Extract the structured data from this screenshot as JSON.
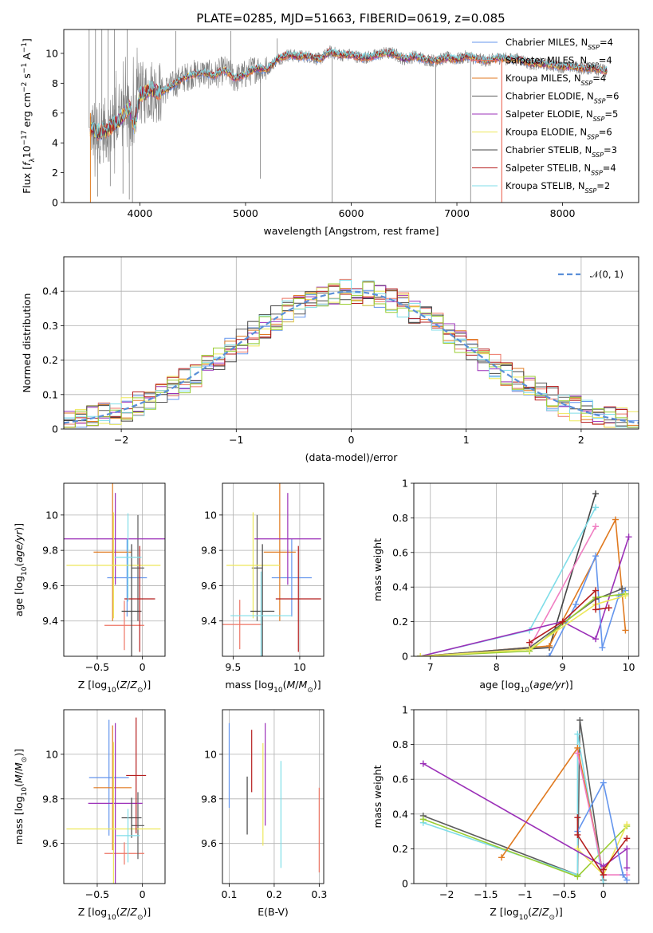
{
  "figure": {
    "title": "PLATE=0285, MJD=51663, FIBERID=0619, z=0.085"
  },
  "models": [
    {
      "name": "Chabrier MILES",
      "nssp": "4",
      "color": "#6495ED"
    },
    {
      "name": "Salpeter MILES",
      "nssp": "4",
      "color": "#ED7564"
    },
    {
      "name": "Kroupa MILES",
      "nssp": "4",
      "color": "#E07A20"
    },
    {
      "name": "Chabrier ELODIE",
      "nssp": "6",
      "color": "#5C5C5C"
    },
    {
      "name": "Salpeter ELODIE",
      "nssp": "5",
      "color": "#9B30B8"
    },
    {
      "name": "Kroupa ELODIE",
      "nssp": "6",
      "color": "#EDE85A"
    },
    {
      "name": "Chabrier STELIB",
      "nssp": "3",
      "color": "#444444"
    },
    {
      "name": "Salpeter STELIB",
      "nssp": "4",
      "color": "#B51E1E"
    },
    {
      "name": "Kroupa STELIB",
      "nssp": "2",
      "color": "#7FDDE8"
    }
  ],
  "extra_colors": {
    "pink": "#F07EC2",
    "lime": "#9ACD32",
    "data_gray": "#808080",
    "gaussian": "#5A8FD8"
  },
  "chart_data": [
    {
      "id": "spectrum",
      "type": "line",
      "title": "PLATE=0285, MJD=51663, FIBERID=0619, z=0.085",
      "xlabel": "wavelength [Angstrom, rest frame]",
      "ylabel": "Flux [f_λ10^-17 erg cm^-2 s^-1 A^-1]",
      "xlim": [
        3280,
        8720
      ],
      "ylim": [
        0,
        11.6
      ],
      "xticks": [
        4000,
        5000,
        6000,
        7000,
        8000
      ],
      "yticks": [
        0,
        2,
        4,
        6,
        8,
        10
      ],
      "grid": false,
      "legend_position": "top-right",
      "continuum": {
        "wavelength": [
          3530,
          3600,
          3700,
          3800,
          3900,
          3950,
          4000,
          4100,
          4200,
          4300,
          4400,
          4500,
          4600,
          4700,
          4800,
          4900,
          5000,
          5100,
          5200,
          5300,
          5400,
          5500,
          5600,
          5700,
          5800,
          5900,
          6000,
          6100,
          6200,
          6300,
          6400,
          6500,
          6600,
          6700,
          6800,
          6900,
          7000,
          7100,
          7200,
          7300,
          7400,
          7500,
          7600,
          7700,
          7800,
          7900,
          8000,
          8100,
          8200,
          8300,
          8420
        ],
        "flux": [
          5.0,
          4.7,
          4.9,
          5.5,
          6.4,
          5.0,
          7.2,
          7.6,
          7.4,
          7.8,
          8.3,
          8.6,
          8.7,
          8.5,
          8.9,
          8.3,
          8.6,
          9.0,
          8.9,
          9.6,
          9.9,
          9.8,
          9.8,
          9.6,
          10.1,
          9.9,
          9.9,
          9.7,
          9.8,
          10.0,
          10.0,
          9.6,
          9.8,
          9.6,
          9.5,
          9.7,
          9.6,
          9.8,
          9.6,
          9.5,
          9.7,
          9.6,
          9.6,
          9.3,
          9.3,
          9.2,
          9.1,
          9.1,
          9.0,
          9.0,
          8.8
        ]
      },
      "data_spikes_down": [
        [
          3600,
          0.4
        ],
        [
          3720,
          1.1
        ],
        [
          3840,
          0.6
        ],
        [
          3900,
          0.2
        ],
        [
          3930,
          0.0
        ],
        [
          5140,
          1.6
        ],
        [
          5820,
          0.0
        ],
        [
          6800,
          0.0
        ],
        [
          7130,
          0.0
        ]
      ],
      "data_spikes_up": [
        [
          3520,
          11.6
        ],
        [
          3580,
          11.6
        ],
        [
          3640,
          11.6
        ],
        [
          3700,
          11.6
        ],
        [
          3760,
          11.6
        ],
        [
          3880,
          11.6
        ],
        [
          4340,
          11.5
        ],
        [
          4860,
          11.5
        ],
        [
          5300,
          11.0
        ]
      ]
    },
    {
      "id": "residuals",
      "type": "histogram",
      "xlabel": "(data-model)/error",
      "ylabel": "Normed distribution",
      "xlim": [
        -2.5,
        2.5
      ],
      "ylim": [
        0,
        0.5
      ],
      "xticks": [
        -2,
        -1,
        0,
        1,
        2
      ],
      "yticks": [
        0.0,
        0.1,
        0.2,
        0.3,
        0.4
      ],
      "grid": true,
      "legend": [
        "𝒩(0, 1)"
      ],
      "legend_position": "top-right",
      "bin_width": 0.1,
      "bin_start": -2.5
    },
    {
      "id": "age-vs-Z",
      "type": "errorbar",
      "xlabel": "Z [log10(Z/Z⊙)]",
      "ylabel": "age  [log10(age/yr)]",
      "xlim": [
        -0.87,
        0.25
      ],
      "ylim": [
        9.2,
        10.18
      ],
      "xticks": [
        -0.5,
        0.0
      ],
      "yticks": [
        9.4,
        9.6,
        9.8,
        10.0
      ],
      "grid": true,
      "points": [
        {
          "model": "Chabrier MILES",
          "x": -0.17,
          "xerr": 0.22,
          "y": 9.645,
          "yerr": 0.22
        },
        {
          "model": "Salpeter MILES",
          "x": -0.2,
          "xerr": 0.22,
          "y": 9.375,
          "yerr": 0.14
        },
        {
          "model": "Kroupa MILES",
          "x": -0.33,
          "xerr": 0.21,
          "y": 9.79,
          "yerr": 0.39
        },
        {
          "model": "Chabrier ELODIE",
          "x": -0.05,
          "xerr": 0.07,
          "y": 9.7,
          "yerr": 0.3
        },
        {
          "model": "Salpeter ELODIE",
          "x": -0.3,
          "xerr": 0.6,
          "y": 9.865,
          "yerr": 0.26
        },
        {
          "model": "Kroupa ELODIE",
          "x": -0.32,
          "xerr": 0.52,
          "y": 9.715,
          "yerr": 0.3
        },
        {
          "model": "Chabrier STELIB",
          "x": -0.12,
          "xerr": 0.11,
          "y": 9.455,
          "yerr": 0.38
        },
        {
          "model": "Salpeter STELIB",
          "x": -0.03,
          "xerr": 0.17,
          "y": 9.525,
          "yerr": 0.3
        },
        {
          "model": "Kroupa STELIB",
          "x": -0.16,
          "xerr": 0.15,
          "y": 9.76,
          "yerr": 0.25
        }
      ]
    },
    {
      "id": "age-vs-mass",
      "type": "errorbar",
      "xlabel": "mass [log10(M/M⊙)]",
      "ylabel": "",
      "xlim": [
        9.42,
        10.18
      ],
      "ylim": [
        9.2,
        10.18
      ],
      "xticks": [
        9.5,
        10.0
      ],
      "yticks": [
        9.4,
        9.6,
        9.8,
        10.0
      ],
      "grid": true,
      "points": [
        {
          "model": "Chabrier MILES",
          "x": 9.94,
          "xerr": 0.15,
          "y": 9.645,
          "yerr": 0.22
        },
        {
          "model": "Salpeter MILES",
          "x": 9.55,
          "xerr": 0.17,
          "y": 9.38,
          "yerr": 0.14
        },
        {
          "model": "Kroupa MILES",
          "x": 9.85,
          "xerr": 0.12,
          "y": 9.79,
          "yerr": 0.39
        },
        {
          "model": "Chabrier ELODIE",
          "x": 9.68,
          "xerr": 0.04,
          "y": 9.7,
          "yerr": 0.3
        },
        {
          "model": "Salpeter ELODIE",
          "x": 9.91,
          "xerr": 0.25,
          "y": 9.865,
          "yerr": 0.26
        },
        {
          "model": "Kroupa ELODIE",
          "x": 9.65,
          "xerr": 0.2,
          "y": 9.715,
          "yerr": 0.3
        },
        {
          "model": "Chabrier STELIB",
          "x": 9.72,
          "xerr": 0.09,
          "y": 9.455,
          "yerr": 0.38
        },
        {
          "model": "Salpeter STELIB",
          "x": 9.99,
          "xerr": 0.17,
          "y": 9.525,
          "yerr": 0.3
        },
        {
          "model": "Kroupa STELIB",
          "x": 9.71,
          "xerr": 0.23,
          "y": 9.43,
          "yerr": 0.25
        }
      ]
    },
    {
      "id": "massweight-vs-age",
      "type": "line",
      "xlabel": "age  [log10(age/yr)]",
      "ylabel": "mass weight",
      "xlim": [
        6.75,
        10.15
      ],
      "ylim": [
        0,
        1.0
      ],
      "xticks": [
        7,
        8,
        9,
        10
      ],
      "yticks": [
        0.0,
        0.2,
        0.4,
        0.6,
        0.8,
        1.0
      ],
      "grid": true
    },
    {
      "id": "mass-vs-Z",
      "type": "errorbar",
      "xlabel": "Z [log10(Z/Z⊙)]",
      "ylabel": "mass [log10(M/M⊙)]",
      "xlim": [
        -0.87,
        0.25
      ],
      "ylim": [
        9.42,
        10.2
      ],
      "xticks": [
        -0.5,
        0.0
      ],
      "yticks": [
        9.6,
        9.8,
        10.0
      ],
      "grid": true,
      "points": [
        {
          "model": "Chabrier MILES",
          "x": -0.37,
          "xerr": 0.22,
          "y": 9.895,
          "yerr": 0.26
        },
        {
          "model": "Salpeter MILES",
          "x": -0.2,
          "xerr": 0.22,
          "y": 9.555,
          "yerr": 0.05
        },
        {
          "model": "Kroupa MILES",
          "x": -0.33,
          "xerr": 0.21,
          "y": 9.85,
          "yerr": 0.28
        },
        {
          "model": "Chabrier ELODIE",
          "x": -0.05,
          "xerr": 0.07,
          "y": 9.68,
          "yerr": 0.15
        },
        {
          "model": "Salpeter ELODIE",
          "x": -0.3,
          "xerr": 0.3,
          "y": 9.78,
          "yerr": 0.36
        },
        {
          "model": "Kroupa ELODIE",
          "x": -0.32,
          "xerr": 0.52,
          "y": 9.665,
          "yerr": 0.39
        },
        {
          "model": "Chabrier STELIB",
          "x": -0.12,
          "xerr": 0.11,
          "y": 9.715,
          "yerr": 0.09
        },
        {
          "model": "Salpeter STELIB",
          "x": -0.07,
          "xerr": 0.11,
          "y": 9.905,
          "yerr": 0.26
        },
        {
          "model": "Kroupa STELIB",
          "x": -0.16,
          "xerr": 0.13,
          "y": 9.635,
          "yerr": 0.12
        }
      ]
    },
    {
      "id": "mass-vs-EBV",
      "type": "errorbar",
      "xlabel": "E(B-V)",
      "ylabel": "",
      "xlim": [
        0.085,
        0.31
      ],
      "ylim": [
        9.42,
        10.2
      ],
      "xticks": [
        0.1,
        0.2,
        0.3
      ],
      "yticks": [
        9.6,
        9.8,
        10.0
      ],
      "grid": true,
      "points": [
        {
          "model": "Chabrier MILES",
          "x": 0.1,
          "y": 9.95,
          "yerr": 0.19
        },
        {
          "model": "Chabrier STELIB",
          "x": 0.14,
          "y": 9.77,
          "yerr": 0.13
        },
        {
          "model": "Salpeter STELIB",
          "x": 0.15,
          "y": 9.97,
          "yerr": 0.14
        },
        {
          "model": "Kroupa ELODIE",
          "x": 0.175,
          "y": 9.82,
          "yerr": 0.23
        },
        {
          "model": "Salpeter ELODIE",
          "x": 0.18,
          "y": 9.91,
          "yerr": 0.23
        },
        {
          "model": "Kroupa STELIB",
          "x": 0.215,
          "y": 9.73,
          "yerr": 0.24
        },
        {
          "model": "Salpeter MILES",
          "x": 0.3,
          "y": 9.66,
          "yerr": 0.19
        }
      ]
    },
    {
      "id": "massweight-vs-Z",
      "type": "line",
      "xlabel": "Z [log10(Z/Z⊙)]",
      "ylabel": "mass weight",
      "xlim": [
        -2.42,
        0.45
      ],
      "ylim": [
        0,
        1.0
      ],
      "xticks": [
        -2.0,
        -1.5,
        -1.0,
        -0.5,
        0.0
      ],
      "yticks": [
        0.0,
        0.2,
        0.4,
        0.6,
        0.8,
        1.0
      ],
      "grid": true
    }
  ]
}
